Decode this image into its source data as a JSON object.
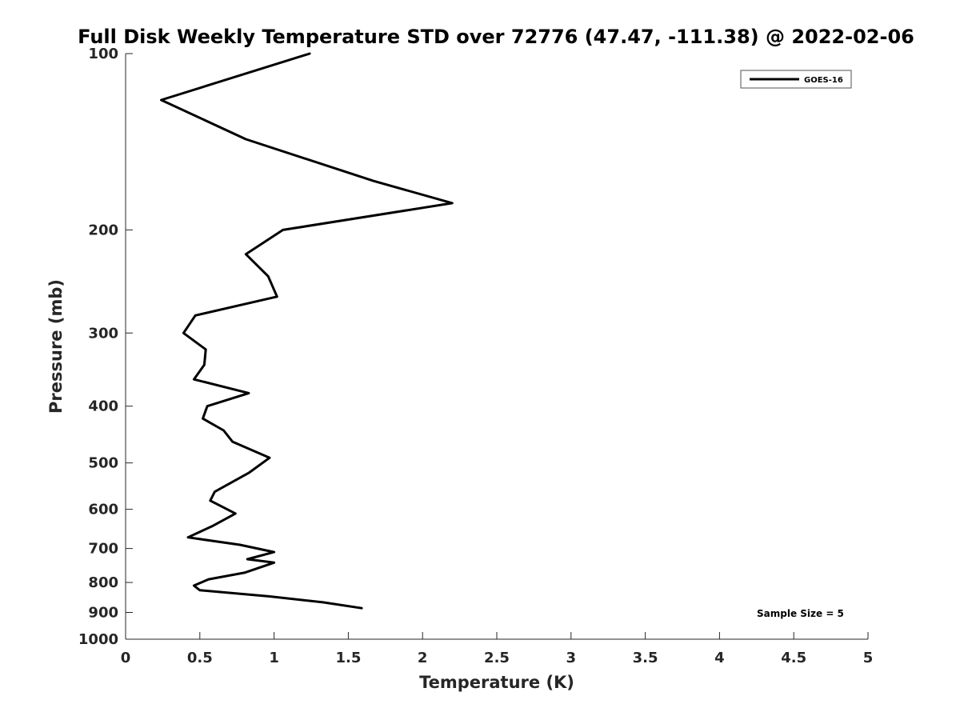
{
  "chart_data": {
    "type": "line",
    "title": "Full Disk Weekly Temperature STD over 72776 (47.47, -111.38) @ 2022-02-06",
    "xlabel": "Temperature (K)",
    "ylabel": "Pressure (mb)",
    "xlim": [
      0,
      5
    ],
    "ylim": [
      100,
      1000
    ],
    "y_scale": "log",
    "y_reversed": true,
    "x_ticks": [
      "0",
      "0.5",
      "1",
      "1.5",
      "2",
      "2.5",
      "3",
      "3.5",
      "4",
      "4.5",
      "5"
    ],
    "y_ticks": [
      "100",
      "200",
      "300",
      "400",
      "500",
      "600",
      "700",
      "800",
      "900",
      "1000"
    ],
    "grid": false,
    "legend_position": "top-right",
    "series": [
      {
        "name": "GOES-16",
        "color": "#000000",
        "points": [
          {
            "x": 1.24,
            "y": 100
          },
          {
            "x": 0.24,
            "y": 120
          },
          {
            "x": 0.81,
            "y": 140
          },
          {
            "x": 1.67,
            "y": 165
          },
          {
            "x": 2.2,
            "y": 180
          },
          {
            "x": 1.06,
            "y": 200
          },
          {
            "x": 0.81,
            "y": 220
          },
          {
            "x": 0.96,
            "y": 240
          },
          {
            "x": 1.02,
            "y": 260
          },
          {
            "x": 0.47,
            "y": 280
          },
          {
            "x": 0.39,
            "y": 300
          },
          {
            "x": 0.54,
            "y": 320
          },
          {
            "x": 0.53,
            "y": 340
          },
          {
            "x": 0.46,
            "y": 360
          },
          {
            "x": 0.83,
            "y": 380
          },
          {
            "x": 0.55,
            "y": 400
          },
          {
            "x": 0.52,
            "y": 420
          },
          {
            "x": 0.66,
            "y": 440
          },
          {
            "x": 0.72,
            "y": 460
          },
          {
            "x": 0.97,
            "y": 490
          },
          {
            "x": 0.83,
            "y": 520
          },
          {
            "x": 0.6,
            "y": 560
          },
          {
            "x": 0.57,
            "y": 580
          },
          {
            "x": 0.74,
            "y": 610
          },
          {
            "x": 0.59,
            "y": 640
          },
          {
            "x": 0.42,
            "y": 670
          },
          {
            "x": 0.77,
            "y": 690
          },
          {
            "x": 1.0,
            "y": 710
          },
          {
            "x": 0.82,
            "y": 730
          },
          {
            "x": 1.0,
            "y": 740
          },
          {
            "x": 0.8,
            "y": 770
          },
          {
            "x": 0.56,
            "y": 790
          },
          {
            "x": 0.46,
            "y": 810
          },
          {
            "x": 0.5,
            "y": 825
          },
          {
            "x": 0.97,
            "y": 845
          },
          {
            "x": 1.33,
            "y": 865
          },
          {
            "x": 1.59,
            "y": 885
          }
        ]
      }
    ],
    "annotation": "Sample Size = 5"
  }
}
